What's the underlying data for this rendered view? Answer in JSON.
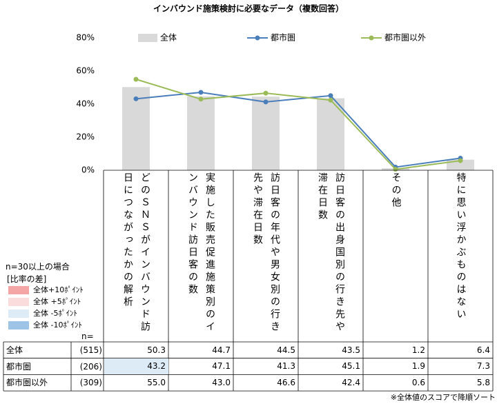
{
  "chart_data": {
    "type": "combo",
    "title": "インバウンド施策検討に必要なデータ（複数回答）",
    "categories": [
      "どのＳＮＳがインバウンド訪日につながったかの解析",
      "実施した販売促進施策別のインバウンド訪日客の数",
      "訪日客の年代や男女別の行き先や滞在日数",
      "訪日客の出身国別の行き先や滞在日数",
      "その他",
      "特に思い浮かぶものはない"
    ],
    "series": [
      {
        "name": "全体",
        "type": "bar",
        "color": "#d9d9d9",
        "values": [
          50.3,
          44.7,
          44.5,
          43.5,
          1.2,
          6.4
        ],
        "value_labels": [
          "50.3",
          "44.7",
          "44.5",
          "43.5",
          "1.2",
          "6.4"
        ]
      },
      {
        "name": "都市圏",
        "type": "line",
        "color": "#4a7ebb",
        "values": [
          43.2,
          47.1,
          41.3,
          45.1,
          1.9,
          7.3
        ],
        "value_labels": [
          "43.2",
          "47.1",
          "41.3",
          "45.1",
          "1.9",
          "7.3"
        ]
      },
      {
        "name": "都市圏以外",
        "type": "line",
        "color": "#9bbb59",
        "values": [
          55.0,
          43.0,
          46.6,
          42.4,
          0.6,
          5.8
        ],
        "value_labels": [
          "55.0",
          "43.0",
          "46.6",
          "42.4",
          "0.6",
          "5.8"
        ]
      }
    ],
    "ylim": [
      0,
      80
    ],
    "yticks": [
      {
        "value": 0,
        "label": "0%"
      },
      {
        "value": 20,
        "label": "20%"
      },
      {
        "value": 40,
        "label": "40%"
      },
      {
        "value": 60,
        "label": "60%"
      },
      {
        "value": 80,
        "label": "80%"
      }
    ],
    "n_label": "n=",
    "n": [
      515,
      206,
      309
    ],
    "n_labels": [
      "(515)",
      "(206)",
      "(309)"
    ],
    "significance": {
      "note": "n=30以上の場合",
      "title": "[比率の差]",
      "levels": [
        {
          "label": "全体+10ﾎﾟｲﾝﾄ",
          "threshold": 10,
          "color": "#f4a6a6"
        },
        {
          "label": "全体 +5ﾎﾟｲﾝﾄ",
          "threshold": 5,
          "color": "#fbdcdc"
        },
        {
          "label": "全体 -5ﾎﾟｲﾝﾄ",
          "threshold": -5,
          "color": "#ddebf7"
        },
        {
          "label": "全体 -10ﾎﾟｲﾝﾄ",
          "threshold": -10,
          "color": "#9dc3e6"
        }
      ]
    },
    "footnote": "※全体値のスコアで降順ソート"
  }
}
